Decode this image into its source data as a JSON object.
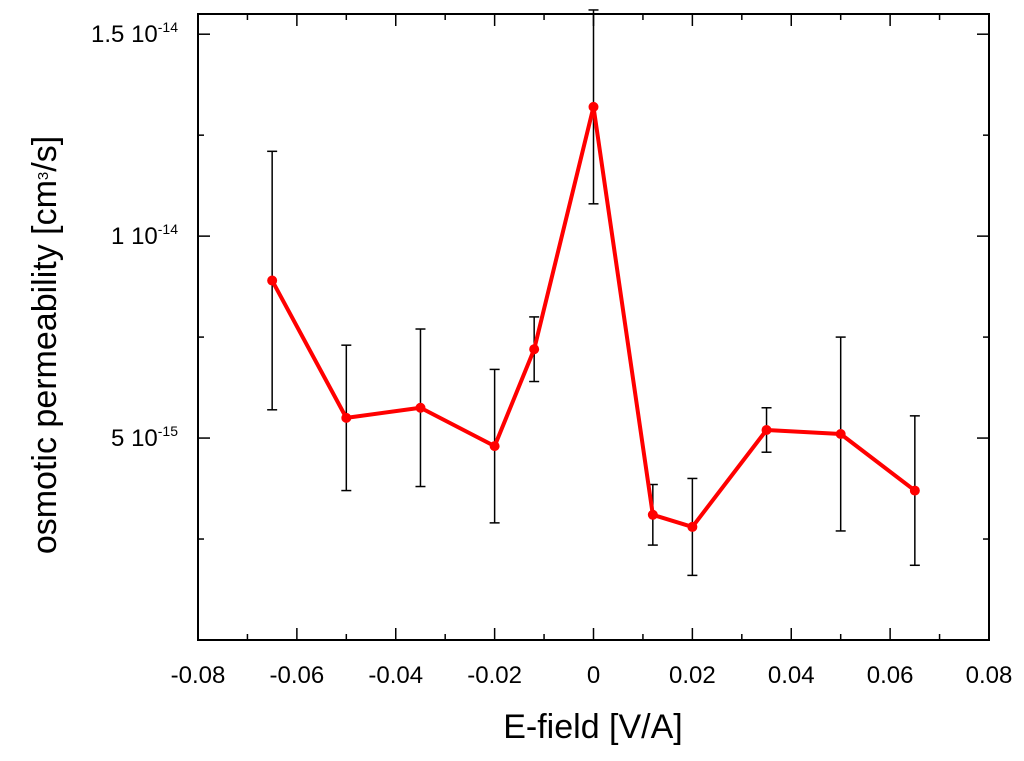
{
  "chart_data": {
    "type": "line",
    "title": "",
    "xlabel": "E-field [V/A]",
    "ylabel_main": "osmotic permeability [cm",
    "ylabel_sup": "3",
    "ylabel_end": "/s]",
    "xlim": [
      -0.08,
      0.08
    ],
    "ylim": [
      0.0,
      1.55e-14
    ],
    "x_ticks": [
      -0.08,
      -0.06,
      -0.04,
      -0.02,
      0,
      0.02,
      0.04,
      0.06,
      0.08
    ],
    "x_tick_labels": [
      "-0.08",
      "-0.06",
      "-0.04",
      "-0.02",
      "0",
      "0.02",
      "0.04",
      "0.06",
      "0.08"
    ],
    "y_ticks": [
      {
        "value": 1.5e-14,
        "mantissa": "1.5 10",
        "exponent": "-14"
      },
      {
        "value": 1e-14,
        "mantissa": "1 10",
        "exponent": "-14"
      },
      {
        "value": 5e-15,
        "mantissa": "5 10",
        "exponent": "-15"
      }
    ],
    "y_minor_step": 2.5e-15,
    "grid": false,
    "colors": {
      "line": "#ff0000",
      "errorbar": "#000000",
      "axis": "#000000"
    },
    "series": [
      {
        "x": [
          -0.065,
          -0.05,
          -0.035,
          -0.02,
          -0.012,
          0,
          0.012,
          0.02,
          0.035,
          0.05,
          0.065
        ],
        "y": [
          8.9e-15,
          5.5e-15,
          5.75e-15,
          4.8e-15,
          7.2e-15,
          1.32e-14,
          3.1e-15,
          2.8e-15,
          5.2e-15,
          5.1e-15,
          3.7e-15
        ],
        "error": [
          3.2e-15,
          1.8e-15,
          1.95e-15,
          1.9e-15,
          8e-16,
          2.4e-15,
          7.5e-16,
          1.2e-15,
          5.5e-16,
          2.4e-15,
          1.85e-15
        ]
      }
    ]
  }
}
